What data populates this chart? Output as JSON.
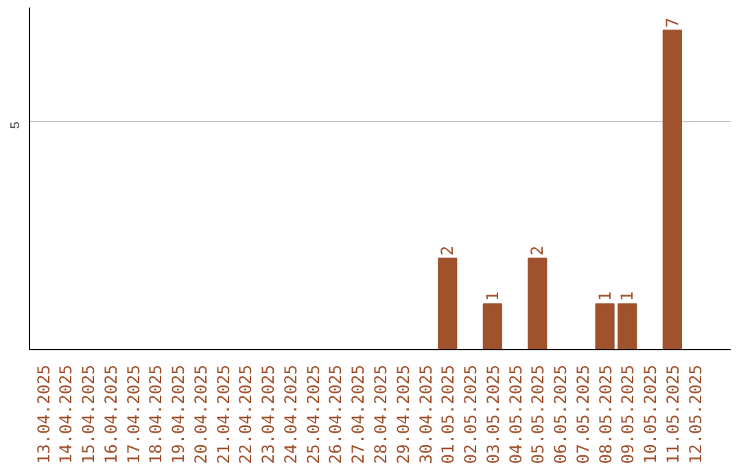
{
  "chart_data": {
    "type": "bar",
    "categories": [
      "13.04.2025",
      "14.04.2025",
      "15.04.2025",
      "16.04.2025",
      "17.04.2025",
      "18.04.2025",
      "19.04.2025",
      "20.04.2025",
      "21.04.2025",
      "22.04.2025",
      "23.04.2025",
      "24.04.2025",
      "25.04.2025",
      "26.04.2025",
      "27.04.2025",
      "28.04.2025",
      "29.04.2025",
      "30.04.2025",
      "01.05.2025",
      "02.05.2025",
      "03.05.2025",
      "04.05.2025",
      "05.05.2025",
      "06.05.2025",
      "07.05.2025",
      "08.05.2025",
      "09.05.2025",
      "10.05.2025",
      "11.05.2025",
      "12.05.2025"
    ],
    "values": [
      null,
      null,
      null,
      null,
      null,
      null,
      null,
      null,
      null,
      null,
      null,
      null,
      null,
      null,
      null,
      null,
      null,
      null,
      2,
      null,
      1,
      null,
      2,
      null,
      null,
      1,
      1,
      null,
      7,
      null
    ],
    "data_labels": true,
    "ylim": [
      0,
      7.5
    ],
    "yticks": [
      5
    ],
    "grid": "y",
    "color": "#a0522d"
  }
}
